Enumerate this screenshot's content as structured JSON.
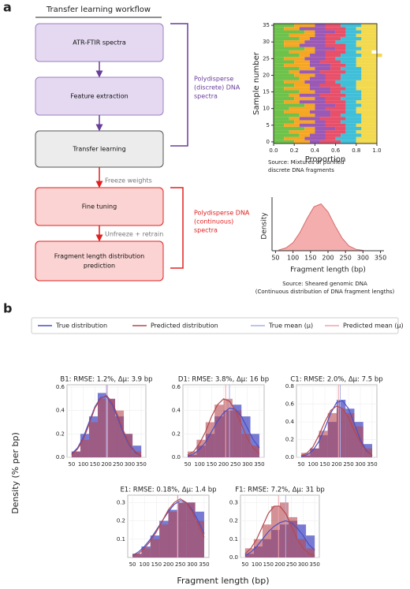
{
  "panel_a": {
    "label": "a",
    "workflow_title": "Transfer learning workflow",
    "nodes": [
      [
        "ATR-FTIR spectra"
      ],
      [
        "Feature extraction"
      ],
      [
        "Transfer learning"
      ],
      [
        "Fine tuning"
      ],
      [
        "Fragment length distribution",
        "prediction"
      ]
    ],
    "edge_labels": [
      "Freeze weights",
      "Unfreeze + retrain"
    ],
    "groups": [
      [
        "Polydisperse",
        "(discrete) DNA",
        "spectra"
      ],
      [
        "Polydisperse DNA",
        "(continuous)",
        "spectra"
      ]
    ],
    "sources": [
      [
        "Source: Mixtures of purified",
        "discrete DNA fragments"
      ],
      [
        "Source: Sheared genomic DNA",
        "(Continuous distribution of DNA fragment lengths)"
      ]
    ]
  },
  "panel_b": {
    "label": "b",
    "legend": [
      {
        "name": "True distribution",
        "color": "#4a4fc4"
      },
      {
        "name": "Predicted distribution",
        "color": "#b5484e"
      },
      {
        "name": "True mean (μ)",
        "color": "#a8b0e8"
      },
      {
        "name": "Predicted mean (μ)",
        "color": "#f0a4ac"
      }
    ],
    "ylabel": "Density (% per bp)",
    "xlabel": "Fragment length (bp)"
  },
  "chart_data": [
    {
      "type": "stacked_barh",
      "xlabel": "Proportion",
      "ylabel": "Sample number",
      "y": [
        0,
        1,
        2,
        3,
        4,
        5,
        6,
        7,
        8,
        9,
        10,
        11,
        12,
        13,
        14,
        15,
        16,
        17,
        18,
        19,
        20,
        21,
        22,
        23,
        24,
        25,
        26,
        27,
        28,
        29,
        30,
        31,
        32,
        33,
        34,
        35
      ],
      "series": [
        {
          "color": "#6cc24a",
          "values": [
            0.2,
            0.1,
            0.25,
            0.15,
            0.3,
            0.1,
            0.2,
            0.15,
            0.25,
            0.1,
            0.15,
            0.3,
            0.1,
            0.2,
            0.15,
            0.25,
            0.1,
            0.2,
            0.1,
            0.25,
            0.2,
            0.15,
            0.25,
            0.1,
            0.2,
            0.1,
            0.25,
            0.15,
            0.3,
            0.1,
            0.1,
            0.25,
            0.15,
            0.3,
            0.1,
            0.2
          ]
        },
        {
          "color": "#f5a623",
          "values": [
            0.15,
            0.2,
            0.1,
            0.25,
            0.1,
            0.15,
            0.2,
            0.1,
            0.15,
            0.25,
            0.25,
            0.1,
            0.15,
            0.2,
            0.1,
            0.15,
            0.25,
            0.15,
            0.2,
            0.1,
            0.2,
            0.1,
            0.15,
            0.25,
            0.15,
            0.2,
            0.1,
            0.25,
            0.1,
            0.15,
            0.2,
            0.1,
            0.25,
            0.1,
            0.15,
            0.2
          ]
        },
        {
          "color": "#9b59b6",
          "values": [
            0.1,
            0.2,
            0.15,
            0.1,
            0.2,
            0.25,
            0.1,
            0.2,
            0.15,
            0.2,
            0.1,
            0.2,
            0.25,
            0.1,
            0.2,
            0.15,
            0.2,
            0.1,
            0.2,
            0.15,
            0.1,
            0.2,
            0.15,
            0.2,
            0.1,
            0.2,
            0.15,
            0.1,
            0.2,
            0.25,
            0.2,
            0.15,
            0.1,
            0.2,
            0.25,
            0.1
          ]
        },
        {
          "color": "#e8506a",
          "values": [
            0.2,
            0.1,
            0.15,
            0.2,
            0.1,
            0.2,
            0.15,
            0.25,
            0.1,
            0.15,
            0.2,
            0.1,
            0.2,
            0.15,
            0.25,
            0.1,
            0.15,
            0.2,
            0.1,
            0.15,
            0.15,
            0.25,
            0.1,
            0.15,
            0.2,
            0.1,
            0.15,
            0.2,
            0.1,
            0.2,
            0.1,
            0.15,
            0.2,
            0.1,
            0.2,
            0.15
          ]
        },
        {
          "color": "#3fbfd8",
          "values": [
            0.15,
            0.2,
            0.2,
            0.1,
            0.15,
            0.1,
            0.2,
            0.15,
            0.2,
            0.1,
            0.1,
            0.15,
            0.1,
            0.2,
            0.15,
            0.2,
            0.1,
            0.15,
            0.2,
            0.2,
            0.2,
            0.15,
            0.2,
            0.1,
            0.15,
            0.2,
            0.2,
            0.1,
            0.15,
            0.1,
            0.2,
            0.2,
            0.1,
            0.15,
            0.1,
            0.2
          ]
        },
        {
          "color": "#f2d94e",
          "values": [
            0.2,
            0.2,
            0.15,
            0.2,
            0.15,
            0.2,
            0.15,
            0.15,
            0.15,
            0.2,
            0.2,
            0.15,
            0.2,
            0.15,
            0.15,
            0.15,
            0.2,
            0.2,
            0.2,
            0.15,
            0.15,
            0.15,
            0.15,
            0.2,
            0.2,
            0.2,
            0.2,
            0.15,
            0.15,
            0.2,
            0.2,
            0.15,
            0.2,
            0.15,
            0.2,
            0.15
          ]
        }
      ],
      "xlim": [
        0,
        1
      ],
      "ylim": [
        -0.5,
        35.5
      ],
      "xticks": [
        {
          "value": 0,
          "label": "0.0"
        },
        {
          "value": 0.2,
          "label": "0.2"
        },
        {
          "value": 0.4,
          "label": "0.4"
        },
        {
          "value": 0.6,
          "label": "0.6"
        },
        {
          "value": 0.8,
          "label": "0.8"
        },
        {
          "value": 1,
          "label": "1.0"
        }
      ],
      "yticks": [
        0,
        5,
        10,
        15,
        20,
        25,
        30,
        35
      ]
    },
    {
      "type": "area",
      "xlabel": "Fragment length (bp)",
      "ylabel": "Density",
      "color": "#f2a0a0",
      "x": [
        60,
        80,
        100,
        120,
        140,
        160,
        180,
        200,
        220,
        240,
        260,
        280,
        300
      ],
      "values": [
        0.016,
        0.06,
        0.17,
        0.39,
        0.68,
        0.93,
        0.99,
        0.82,
        0.53,
        0.27,
        0.1,
        0.03,
        0.008
      ],
      "xlim": [
        40,
        360
      ],
      "ylim": [
        0,
        1.05
      ],
      "xticks": [
        50,
        100,
        150,
        200,
        250,
        300,
        350
      ]
    },
    {
      "type": "histogram",
      "title": "B1: RMSE: 1.2%, Δμ: 3.9 bp",
      "grid": true,
      "bins": [
        50,
        87.5,
        125,
        162.5,
        200,
        237.5,
        275,
        312.5,
        350
      ],
      "series": [
        {
          "values": [
            0.05,
            0.2,
            0.35,
            0.55,
            0.5,
            0.35,
            0.2,
            0.1
          ]
        },
        {
          "values": [
            0.05,
            0.15,
            0.3,
            0.5,
            0.5,
            0.4,
            0.2,
            0.05
          ]
        }
      ],
      "x": [
        50,
        75,
        100,
        125,
        150,
        175,
        200,
        225,
        250,
        275,
        300,
        325,
        350
      ],
      "lines": [
        {
          "values": [
            0.03,
            0.08,
            0.17,
            0.3,
            0.43,
            0.51,
            0.52,
            0.45,
            0.33,
            0.2,
            0.1,
            0.04,
            0.01
          ]
        },
        {
          "values": [
            0.02,
            0.07,
            0.15,
            0.28,
            0.42,
            0.5,
            0.53,
            0.47,
            0.35,
            0.22,
            0.11,
            0.05,
            0.01
          ]
        }
      ],
      "means": [
        200,
        203.9
      ],
      "xlim": [
        30,
        370
      ],
      "ylim": [
        0,
        0.62
      ],
      "xticks": [
        50,
        100,
        150,
        200,
        250,
        300,
        350
      ],
      "yticks": [
        {
          "value": 0,
          "label": "0.0"
        },
        {
          "value": 0.2,
          "label": "0.2"
        },
        {
          "value": 0.4,
          "label": "0.4"
        },
        {
          "value": 0.6,
          "label": "0.6"
        }
      ]
    },
    {
      "type": "histogram",
      "title": "D1: RMSE: 3.8%, Δμ: 16 bp",
      "grid": true,
      "bins": [
        50,
        87.5,
        125,
        162.5,
        200,
        237.5,
        275,
        312.5,
        350
      ],
      "series": [
        {
          "values": [
            0.02,
            0.1,
            0.2,
            0.35,
            0.4,
            0.45,
            0.35,
            0.2
          ]
        },
        {
          "values": [
            0.05,
            0.15,
            0.3,
            0.45,
            0.5,
            0.4,
            0.2,
            0.1
          ]
        }
      ],
      "x": [
        50,
        75,
        100,
        125,
        150,
        175,
        200,
        225,
        250,
        275,
        300,
        325,
        350
      ],
      "lines": [
        {
          "values": [
            0.01,
            0.03,
            0.07,
            0.13,
            0.22,
            0.31,
            0.38,
            0.42,
            0.41,
            0.35,
            0.25,
            0.15,
            0.08
          ]
        },
        {
          "values": [
            0.02,
            0.05,
            0.12,
            0.22,
            0.35,
            0.45,
            0.5,
            0.48,
            0.4,
            0.28,
            0.16,
            0.08,
            0.03
          ]
        }
      ],
      "means": [
        225,
        209
      ],
      "xlim": [
        30,
        370
      ],
      "ylim": [
        0,
        0.62
      ],
      "xticks": [
        50,
        100,
        150,
        200,
        250,
        300,
        350
      ],
      "yticks": [
        {
          "value": 0,
          "label": "0.0"
        },
        {
          "value": 0.2,
          "label": "0.2"
        },
        {
          "value": 0.4,
          "label": "0.4"
        },
        {
          "value": 0.6,
          "label": "0.6"
        }
      ]
    },
    {
      "type": "histogram",
      "title": "C1: RMSE: 2.0%, Δμ: 7.5 bp",
      "grid": true,
      "bins": [
        50,
        87.5,
        125,
        162.5,
        200,
        237.5,
        275,
        312.5,
        350
      ],
      "series": [
        {
          "values": [
            0.02,
            0.1,
            0.25,
            0.4,
            0.65,
            0.55,
            0.4,
            0.15
          ]
        },
        {
          "values": [
            0.05,
            0.1,
            0.3,
            0.5,
            0.55,
            0.5,
            0.35,
            0.1
          ]
        }
      ],
      "x": [
        50,
        75,
        100,
        125,
        150,
        175,
        200,
        225,
        250,
        275,
        300,
        325,
        350
      ],
      "lines": [
        {
          "values": [
            0.01,
            0.03,
            0.08,
            0.18,
            0.33,
            0.5,
            0.62,
            0.64,
            0.55,
            0.38,
            0.2,
            0.08,
            0.02
          ]
        },
        {
          "values": [
            0.02,
            0.05,
            0.12,
            0.25,
            0.4,
            0.53,
            0.58,
            0.55,
            0.45,
            0.3,
            0.17,
            0.07,
            0.02
          ]
        }
      ],
      "means": [
        215,
        207.5
      ],
      "xlim": [
        30,
        370
      ],
      "ylim": [
        0,
        0.82
      ],
      "xticks": [
        50,
        100,
        150,
        200,
        250,
        300,
        350
      ],
      "yticks": [
        {
          "value": 0,
          "label": "0.0"
        },
        {
          "value": 0.2,
          "label": "0.2"
        },
        {
          "value": 0.4,
          "label": "0.4"
        },
        {
          "value": 0.6,
          "label": "0.6"
        },
        {
          "value": 0.8,
          "label": "0.8"
        }
      ]
    },
    {
      "type": "histogram",
      "title": "E1: RMSE: 0.18%, Δμ: 1.4 bp",
      "grid": true,
      "bins": [
        50,
        87.5,
        125,
        162.5,
        200,
        237.5,
        275,
        312.5,
        350
      ],
      "series": [
        {
          "values": [
            0.02,
            0.06,
            0.12,
            0.2,
            0.26,
            0.3,
            0.3,
            0.25
          ]
        },
        {
          "values": [
            0.02,
            0.05,
            0.1,
            0.18,
            0.25,
            0.3,
            0.3,
            0.2
          ]
        }
      ],
      "x": [
        50,
        75,
        100,
        125,
        150,
        175,
        200,
        225,
        250,
        275,
        300,
        325,
        350
      ],
      "lines": [
        {
          "values": [
            0.01,
            0.03,
            0.06,
            0.1,
            0.15,
            0.2,
            0.25,
            0.29,
            0.31,
            0.3,
            0.26,
            0.2,
            0.13
          ]
        },
        {
          "values": [
            0.01,
            0.02,
            0.05,
            0.09,
            0.14,
            0.2,
            0.26,
            0.3,
            0.32,
            0.3,
            0.25,
            0.18,
            0.11
          ]
        }
      ],
      "means": [
        240,
        238.6
      ],
      "xlim": [
        30,
        370
      ],
      "ylim": [
        0,
        0.34
      ],
      "xticks": [
        50,
        100,
        150,
        200,
        250,
        300,
        350
      ],
      "yticks": [
        0.1,
        0.2,
        0.3
      ]
    },
    {
      "type": "histogram",
      "title": "F1: RMSE: 7.2%, Δμ: 31 bp",
      "grid": true,
      "bins": [
        50,
        87.5,
        125,
        162.5,
        200,
        237.5,
        275,
        312.5,
        350
      ],
      "series": [
        {
          "values": [
            0.02,
            0.06,
            0.1,
            0.15,
            0.18,
            0.2,
            0.18,
            0.12
          ]
        },
        {
          "values": [
            0.05,
            0.1,
            0.18,
            0.28,
            0.3,
            0.22,
            0.1,
            0.05
          ]
        }
      ],
      "x": [
        50,
        75,
        100,
        125,
        150,
        175,
        200,
        225,
        250,
        275,
        300,
        325,
        350
      ],
      "lines": [
        {
          "values": [
            0.01,
            0.03,
            0.06,
            0.1,
            0.14,
            0.17,
            0.19,
            0.2,
            0.19,
            0.16,
            0.12,
            0.07,
            0.04
          ]
        },
        {
          "values": [
            0.02,
            0.05,
            0.1,
            0.17,
            0.24,
            0.28,
            0.28,
            0.24,
            0.17,
            0.1,
            0.05,
            0.02,
            0.01
          ]
        }
      ],
      "means": [
        225,
        194
      ],
      "xlim": [
        30,
        370
      ],
      "ylim": [
        0,
        0.34
      ],
      "xticks": [
        50,
        100,
        150,
        200,
        250,
        300,
        350
      ],
      "yticks": [
        {
          "value": 0,
          "label": "0.0"
        },
        {
          "value": 0.1,
          "label": "0.1"
        },
        {
          "value": 0.2,
          "label": "0.2"
        },
        {
          "value": 0.3,
          "label": "0.3"
        }
      ]
    }
  ]
}
